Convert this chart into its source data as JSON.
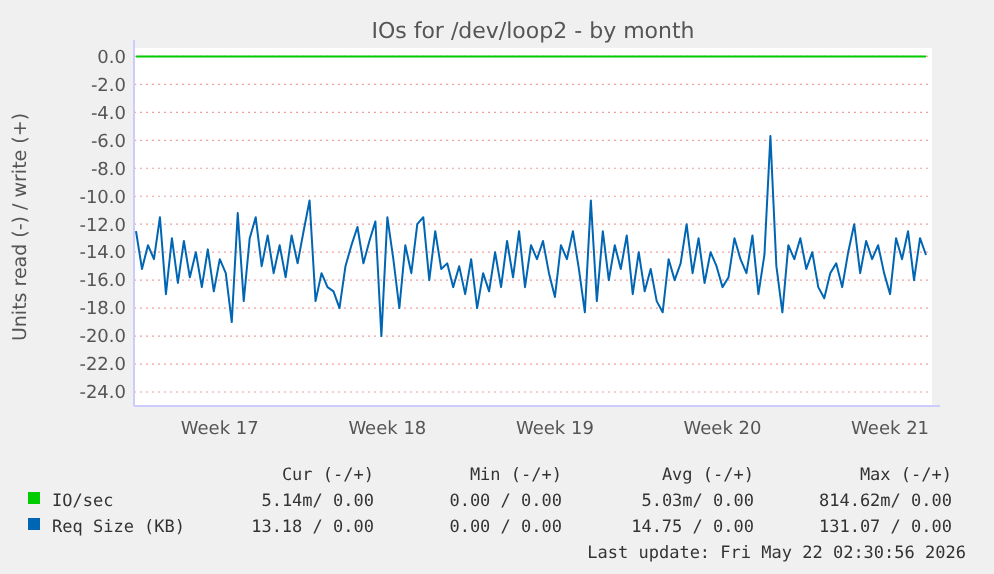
{
  "chart_data": {
    "type": "line",
    "title": "IOs for /dev/loop2 - by month",
    "ylabel": "Units read (-) / write (+)",
    "categories": [
      null,
      null,
      null,
      null,
      null,
      null,
      null,
      null,
      null,
      null,
      null,
      null,
      null,
      null,
      "Week 17",
      null,
      null,
      null,
      null,
      null,
      null,
      null,
      null,
      null,
      null,
      null,
      null,
      null,
      null,
      null,
      null,
      null,
      null,
      null,
      null,
      null,
      null,
      null,
      null,
      null,
      null,
      null,
      "Week 18",
      null,
      null,
      null,
      null,
      null,
      null,
      null,
      null,
      null,
      null,
      null,
      null,
      null,
      null,
      null,
      null,
      null,
      null,
      null,
      null,
      null,
      null,
      null,
      null,
      null,
      null,
      null,
      "Week 19",
      null,
      null,
      null,
      null,
      null,
      null,
      null,
      null,
      null,
      null,
      null,
      null,
      null,
      null,
      null,
      null,
      null,
      null,
      null,
      null,
      null,
      null,
      null,
      null,
      null,
      null,
      null,
      "Week 20",
      null,
      null,
      null,
      null,
      null,
      null,
      null,
      null,
      null,
      null,
      null,
      null,
      null,
      null,
      null,
      null,
      null,
      null,
      null,
      null,
      null,
      null,
      null,
      null,
      null,
      null,
      null,
      "Week 21",
      null,
      null,
      null,
      null,
      null,
      null
    ],
    "series": [
      {
        "name": "IO/sec",
        "color": "#00cc00",
        "values": [
          0,
          0,
          0,
          0,
          0,
          0,
          0,
          0,
          0,
          0,
          0,
          0,
          0,
          0,
          0,
          0,
          0,
          0,
          0,
          0,
          0,
          0,
          0,
          0,
          0,
          0,
          0,
          0,
          0,
          0,
          0,
          0,
          0,
          0,
          0,
          0,
          0,
          0,
          0,
          0,
          0,
          0,
          0,
          0,
          0,
          0,
          0,
          0,
          0,
          0,
          0,
          0,
          0,
          0,
          0,
          0,
          0,
          0,
          0,
          0,
          0,
          0,
          0,
          0,
          0,
          0,
          0,
          0,
          0,
          0,
          0,
          0,
          0,
          0,
          0,
          0,
          0,
          0,
          0,
          0,
          0,
          0,
          0,
          0,
          0,
          0,
          0,
          0,
          0,
          0,
          0,
          0,
          0,
          0,
          0,
          0,
          0,
          0,
          0,
          0,
          0,
          0,
          0,
          0,
          0,
          0,
          0,
          0,
          0,
          0,
          0,
          0,
          0,
          0,
          0,
          0,
          0,
          0,
          0,
          0,
          0,
          0,
          0,
          0,
          0,
          0,
          0,
          0,
          0,
          0,
          0,
          0,
          0
        ]
      },
      {
        "name": "Req Size (KB)",
        "color": "#0066b3",
        "values": [
          -12.5,
          -15.2,
          -13.5,
          -14.5,
          -11.5,
          -17,
          -13,
          -16.2,
          -13.2,
          -15.8,
          -14,
          -16.5,
          -13.8,
          -16.8,
          -14.5,
          -15.5,
          -19,
          -11.2,
          -17.5,
          -13,
          -11.5,
          -15,
          -12.8,
          -15.5,
          -13.5,
          -15.8,
          -12.8,
          -14.8,
          -12.5,
          -10.3,
          -17.5,
          -15.5,
          -16.5,
          -16.8,
          -18,
          -15,
          -13.5,
          -12.2,
          -14.8,
          -13.2,
          -11.8,
          -20,
          -11.5,
          -14.5,
          -18,
          -13.5,
          -15.5,
          -12,
          -11.5,
          -16,
          -12.5,
          -15.2,
          -14.8,
          -16.5,
          -15,
          -17,
          -14.5,
          -18,
          -15.5,
          -16.8,
          -14,
          -16.5,
          -13.2,
          -15.8,
          -12.5,
          -16.5,
          -13.5,
          -14.5,
          -13.2,
          -15.5,
          -17.2,
          -13.5,
          -14.5,
          -12.5,
          -15.2,
          -18.3,
          -10.3,
          -17.5,
          -12.5,
          -16,
          -13.5,
          -15.2,
          -12.8,
          -17,
          -14,
          -16.8,
          -15.2,
          -17.5,
          -18.3,
          -14.5,
          -16,
          -14.8,
          -12,
          -15.5,
          -13,
          -16.2,
          -14,
          -15,
          -16.5,
          -15.8,
          -13,
          -14.5,
          -15.5,
          -12.8,
          -17,
          -14.2,
          -5.7,
          -15,
          -18.3,
          -13.5,
          -14.5,
          -13,
          -15.2,
          -14,
          -16.5,
          -17.3,
          -15.5,
          -14.8,
          -16.5,
          -14,
          -12,
          -15.5,
          -13.2,
          -14.5,
          -13.5,
          -15.5,
          -17,
          -13,
          -14.5,
          -12.5,
          -16,
          -13,
          -14.2
        ]
      }
    ],
    "ylim": [
      -25,
      0.6
    ],
    "yticks": [
      {
        "value": 0,
        "label": "0.0"
      },
      {
        "value": -2,
        "label": "-2.0"
      },
      {
        "value": -4,
        "label": "-4.0"
      },
      {
        "value": -6,
        "label": "-6.0"
      },
      {
        "value": -8,
        "label": "-8.0"
      },
      {
        "value": -10,
        "label": "-10.0"
      },
      {
        "value": -12,
        "label": "-12.0"
      },
      {
        "value": -14,
        "label": "-14.0"
      },
      {
        "value": -16,
        "label": "-16.0"
      },
      {
        "value": -18,
        "label": "-18.0"
      },
      {
        "value": -20,
        "label": "-20.0"
      },
      {
        "value": -22,
        "label": "-22.0"
      },
      {
        "value": -24,
        "label": "-24.0"
      }
    ],
    "grid": "y",
    "legend": "bottom",
    "marker": "none",
    "line_style": "solid",
    "annotations": [
      "Cur (-/+)",
      "Min (-/+)",
      "Avg (-/+)",
      "Max (-/+)",
      "5.14m/ 0.00",
      "0.00 / 0.00",
      "5.03m/ 0.00",
      "814.62m/ 0.00",
      "13.18 / 0.00",
      "0.00 / 0.00",
      "14.75 / 0.00",
      "131.07 / 0.00",
      "Last update: Fri May 22 02:30:56 2026"
    ]
  }
}
